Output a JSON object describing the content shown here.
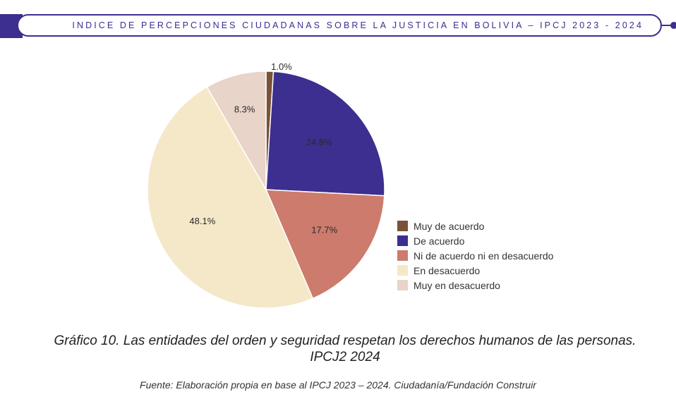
{
  "header": {
    "title": "INDICE DE PERCEPCIONES CIUDADANAS SOBRE LA JUSTICIA EN BOLIVIA – IPCJ 2023 - 2024"
  },
  "chart_data": {
    "type": "pie",
    "slices": [
      {
        "label": "Muy de acuerdo",
        "value": 1.0,
        "display": "1.0%",
        "color": "#7a5238"
      },
      {
        "label": "De acuerdo",
        "value": 24.8,
        "display": "24.8%",
        "color": "#3c2f8f"
      },
      {
        "label": "Ni de acuerdo ni en desacuerdo",
        "value": 17.7,
        "display": "17.7%",
        "color": "#cc7b6d"
      },
      {
        "label": "En desacuerdo",
        "value": 48.1,
        "display": "48.1%",
        "color": "#f5e8c8"
      },
      {
        "label": "Muy en desacuerdo",
        "value": 8.3,
        "display": "8.3%",
        "color": "#e8d4c8"
      }
    ],
    "legend_position": "right"
  },
  "caption": {
    "label": "Gráfico 10.",
    "text": " Las entidades del orden y seguridad respetan los derechos humanos de las personas. IPCJ2 2024"
  },
  "source": {
    "label": "Fuente:",
    "text": " Elaboración propia en base al IPCJ 2023 – 2024. Ciudadanía/Fundación Construir"
  }
}
